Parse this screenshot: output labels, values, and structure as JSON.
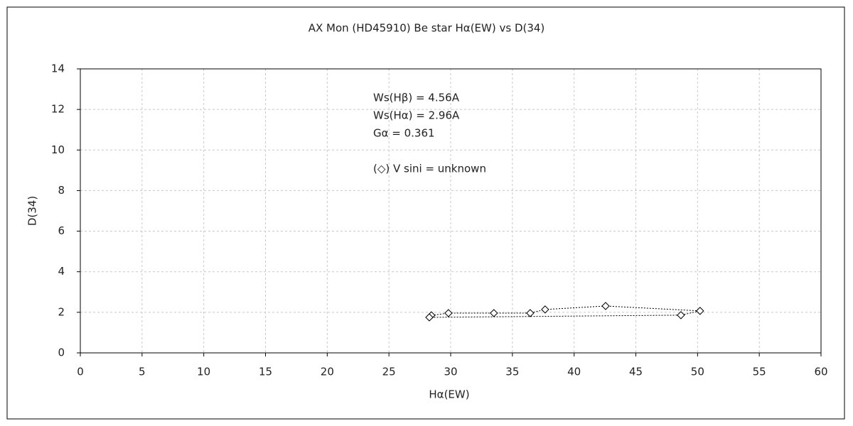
{
  "chart_data": {
    "type": "scatter",
    "title": "AX Mon (HD45910)    Be star    Hα(EW) vs D(34)",
    "x_label": "Hα(EW)",
    "y_label": "D(34)",
    "annotations": [
      "Ws(Hβ) = 4.56A",
      "Ws(Hα) = 2.96A",
      "Gα = 0.361",
      "(◇) V sini = unknown"
    ],
    "series": [
      {
        "color": "#000000",
        "x": [
          28.44,
          29.82,
          33.5,
          36.44,
          37.65,
          42.55,
          50.2,
          48.65,
          28.27
        ],
        "values": [
          1.85,
          1.96,
          1.96,
          1.96,
          2.14,
          2.31,
          2.07,
          1.86,
          1.75
        ]
      }
    ],
    "xlim": [
      0,
      60
    ],
    "xticks": [
      0,
      5,
      10,
      15,
      20,
      25,
      30,
      35,
      40,
      45,
      50,
      55,
      60
    ],
    "ylim": [
      0,
      14
    ],
    "yticks": [
      0,
      2,
      4,
      6,
      8,
      10,
      12,
      14
    ],
    "grid": true
  }
}
